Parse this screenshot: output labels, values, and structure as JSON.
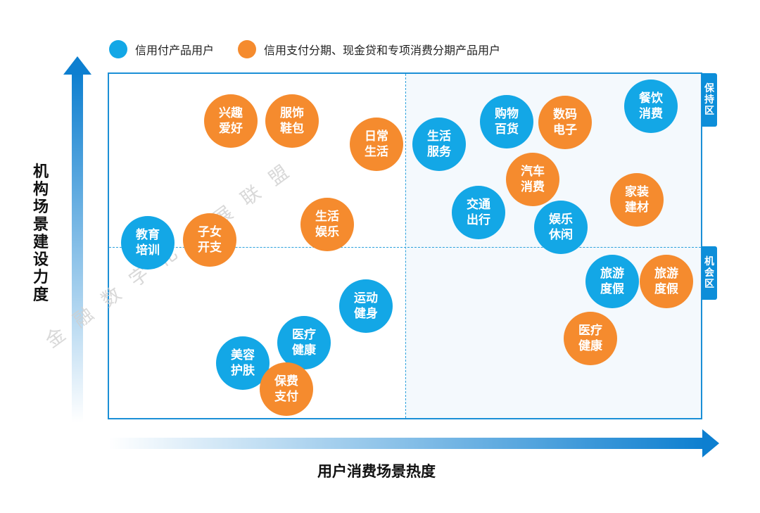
{
  "legend": {
    "items": [
      {
        "label": "信用付产品用户",
        "color": "#13a7e6"
      },
      {
        "label": "信用支付分期、现金贷和专项消费分期产品用户",
        "color": "#f58b2e"
      }
    ]
  },
  "axes": {
    "y_title": "机构场景建设力度",
    "x_title": "用户消费场景热度"
  },
  "zones": {
    "keep": "保持区",
    "chance": "机会区"
  },
  "watermark": "金融数字化发展联盟",
  "bubbles": [
    {
      "label": "兴趣爱好",
      "group": "orange"
    },
    {
      "label": "服饰鞋包",
      "group": "orange"
    },
    {
      "label": "日常生活",
      "group": "orange"
    },
    {
      "label": "生活服务",
      "group": "blue"
    },
    {
      "label": "购物百货",
      "group": "blue"
    },
    {
      "label": "数码电子",
      "group": "orange"
    },
    {
      "label": "餐饮消费",
      "group": "blue"
    },
    {
      "label": "汽车消费",
      "group": "orange"
    },
    {
      "label": "家装建材",
      "group": "orange"
    },
    {
      "label": "交通出行",
      "group": "blue"
    },
    {
      "label": "娱乐休闲",
      "group": "blue"
    },
    {
      "label": "生活娱乐",
      "group": "orange"
    },
    {
      "label": "教育培训",
      "group": "blue"
    },
    {
      "label": "子女开支",
      "group": "orange"
    },
    {
      "label": "旅游度假",
      "group": "blue"
    },
    {
      "label": "旅游度假",
      "group": "orange"
    },
    {
      "label": "运动健身",
      "group": "blue"
    },
    {
      "label": "医疗健康",
      "group": "blue"
    },
    {
      "label": "医疗健康",
      "group": "orange"
    },
    {
      "label": "美容护肤",
      "group": "blue"
    },
    {
      "label": "保费支付",
      "group": "orange"
    }
  ],
  "colors": {
    "blue": "#13a7e6",
    "orange": "#f58b2e",
    "axis": "#0d7fd0"
  }
}
